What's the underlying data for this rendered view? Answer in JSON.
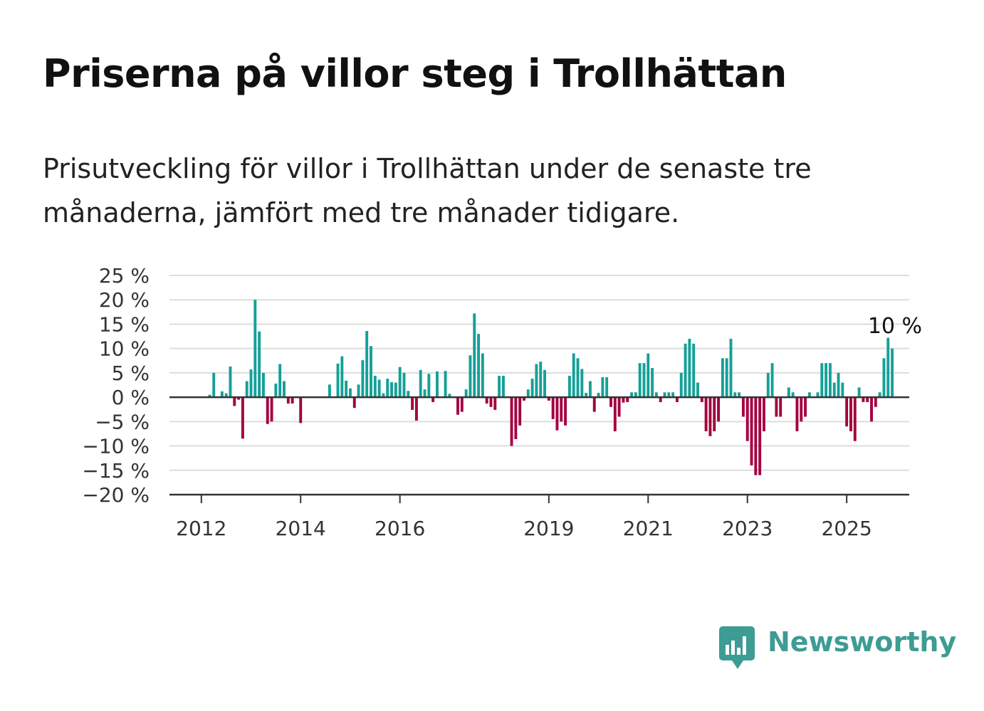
{
  "title": "Priserna på villor steg i Trollhättan",
  "subtitle": "Prisutveckling för villor i Trollhättan under de senaste tre månaderna, jämfört med tre månader tidigare.",
  "brand": {
    "name": "Newsworthy",
    "icon": "newsworthy-logo-icon",
    "color": "#3d9c93"
  },
  "chart_data": {
    "type": "bar",
    "title": "",
    "xlabel": "",
    "ylabel": "",
    "ylim": [
      -20,
      25
    ],
    "y_ticks": [
      {
        "value": 25,
        "label": "25 %"
      },
      {
        "value": 20,
        "label": "20 %"
      },
      {
        "value": 15,
        "label": "15 %"
      },
      {
        "value": 10,
        "label": "10 %"
      },
      {
        "value": 5,
        "label": "5 %"
      },
      {
        "value": 0,
        "label": "0 %"
      },
      {
        "value": -5,
        "label": "−5 %"
      },
      {
        "value": -10,
        "label": "−10 %"
      },
      {
        "value": -15,
        "label": "−15 %"
      },
      {
        "value": -20,
        "label": "−20 %"
      }
    ],
    "x_ticks": [
      {
        "year": 2012,
        "label": "2012"
      },
      {
        "year": 2014,
        "label": "2014"
      },
      {
        "year": 2016,
        "label": "2016"
      },
      {
        "year": 2019,
        "label": "2019"
      },
      {
        "year": 2021,
        "label": "2021"
      },
      {
        "year": 2023,
        "label": "2023"
      },
      {
        "year": 2025,
        "label": "2025"
      }
    ],
    "grid": true,
    "legend": "none",
    "positive_color": "#14a098",
    "negative_color": "#a3003f",
    "start": "2012-01",
    "frequency": "monthly",
    "values": [
      0,
      0,
      0.5,
      5,
      0,
      1.2,
      0.8,
      6.3,
      -1.8,
      -0.5,
      -8.5,
      3.3,
      5.7,
      20,
      13.5,
      5,
      -5.5,
      -5,
      2.8,
      6.8,
      3.3,
      -1.3,
      -1.3,
      0,
      -5.3,
      0,
      0,
      0,
      0,
      0,
      0,
      2.6,
      0,
      6.9,
      8.4,
      3.4,
      1.8,
      -2.2,
      2.6,
      7.6,
      13.6,
      10.5,
      4.4,
      3.6,
      0.8,
      3.8,
      3.1,
      3,
      6.2,
      5,
      1.3,
      -2.6,
      -4.8,
      5.6,
      1.6,
      4.8,
      -1,
      5.3,
      0,
      5.4,
      0.7,
      0,
      -3.6,
      -3,
      1.6,
      8.6,
      17.2,
      13,
      9,
      -1.3,
      -2,
      -2.6,
      4.4,
      4.4,
      0,
      -10,
      -8.6,
      -5.8,
      -0.7,
      1.6,
      3.8,
      6.8,
      7.3,
      5.6,
      -0.7,
      -4.5,
      -6.8,
      -5,
      -5.8,
      4.4,
      9,
      8,
      5.8,
      0.9,
      3.3,
      -3,
      0.9,
      4.1,
      4.1,
      -2,
      -7,
      -4,
      -1.1,
      -1,
      1,
      1,
      7,
      7,
      9,
      6,
      1,
      -1,
      1,
      1,
      1,
      -1,
      5,
      11,
      12,
      11,
      3,
      -1,
      -7,
      -8,
      -7,
      -5,
      8,
      8,
      12,
      1,
      1,
      -4,
      -9,
      -14,
      -16,
      -16,
      -7,
      5,
      7,
      -4,
      -4,
      0,
      2,
      1,
      -7,
      -5,
      -4,
      1,
      0,
      1,
      7,
      7,
      7,
      3,
      5,
      3,
      -6,
      -7,
      -9,
      2,
      -1,
      -1,
      -5,
      -2,
      1,
      8,
      12.2,
      10
    ],
    "annotations": [
      {
        "label": "10 %",
        "at": "last"
      }
    ]
  }
}
